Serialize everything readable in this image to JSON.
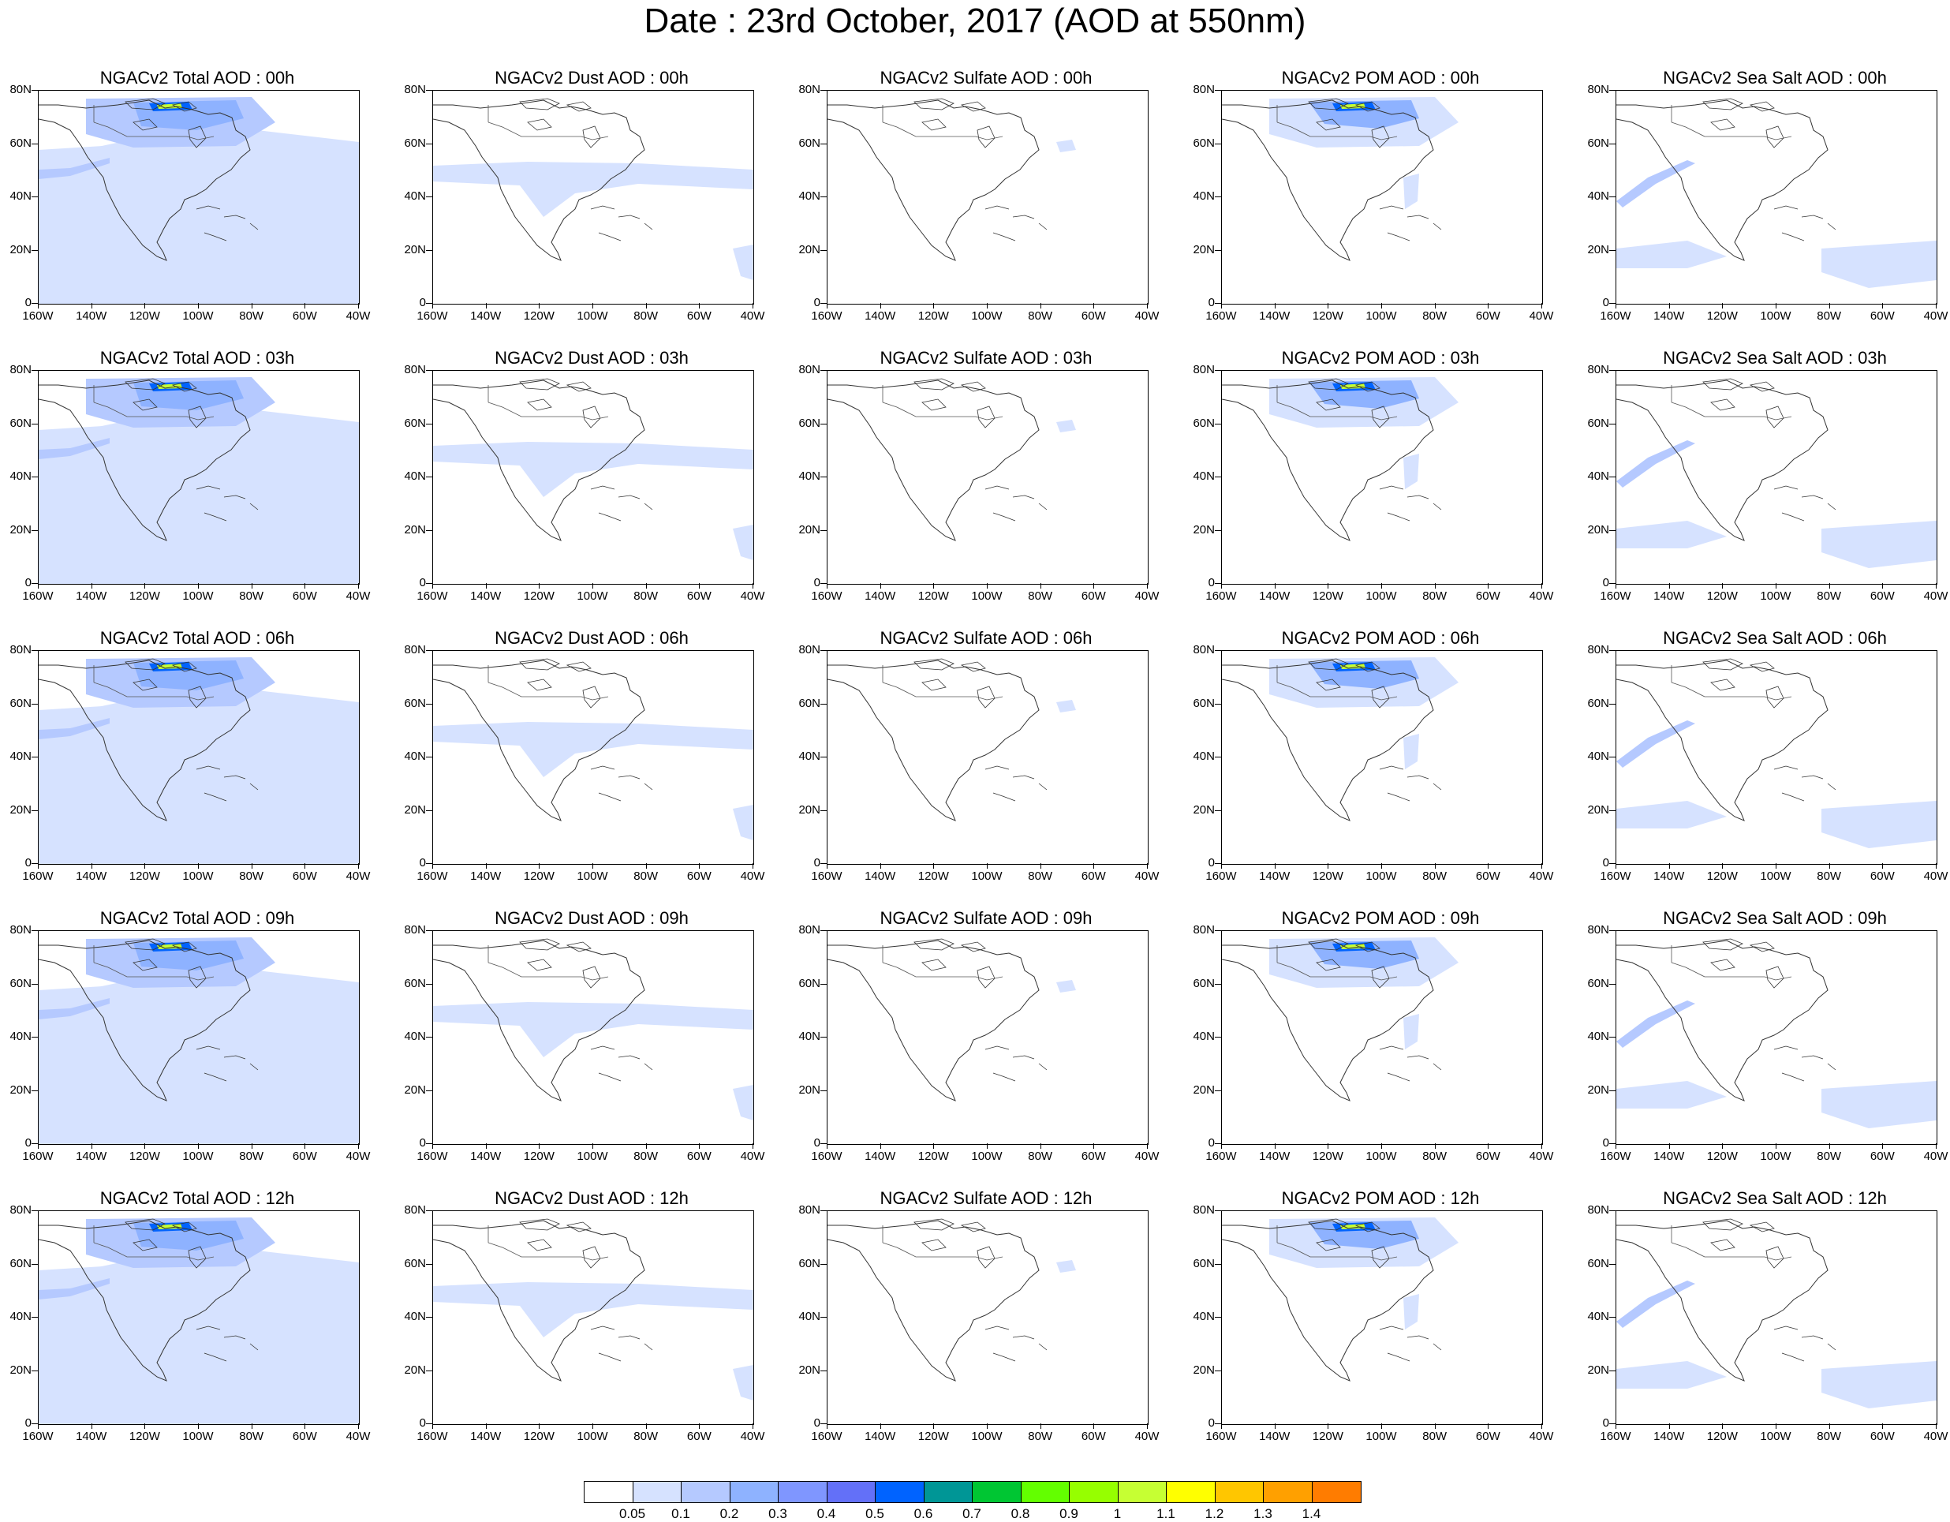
{
  "title": "Date : 23rd October, 2017 (AOD at 550nm)",
  "axes": {
    "lat_labels": [
      "80N",
      "60N",
      "40N",
      "20N",
      "0"
    ],
    "lon_labels": [
      "160W",
      "140W",
      "120W",
      "100W",
      "80W",
      "60W",
      "40W"
    ]
  },
  "panels": [
    {
      "title": "NGACv2 Total AOD : 00h",
      "species": "total",
      "hour": "00h"
    },
    {
      "title": "NGACv2 Dust AOD : 00h",
      "species": "dust",
      "hour": "00h"
    },
    {
      "title": "NGACv2 Sulfate AOD : 00h",
      "species": "sulfate",
      "hour": "00h"
    },
    {
      "title": "NGACv2 POM AOD : 00h",
      "species": "pom",
      "hour": "00h"
    },
    {
      "title": "NGACv2 Sea Salt AOD : 00h",
      "species": "seasalt",
      "hour": "00h"
    },
    {
      "title": "NGACv2 Total AOD : 03h",
      "species": "total",
      "hour": "03h"
    },
    {
      "title": "NGACv2 Dust AOD : 03h",
      "species": "dust",
      "hour": "03h"
    },
    {
      "title": "NGACv2 Sulfate AOD : 03h",
      "species": "sulfate",
      "hour": "03h"
    },
    {
      "title": "NGACv2 POM AOD : 03h",
      "species": "pom",
      "hour": "03h"
    },
    {
      "title": "NGACv2 Sea Salt AOD : 03h",
      "species": "seasalt",
      "hour": "03h"
    },
    {
      "title": "NGACv2 Total AOD : 06h",
      "species": "total",
      "hour": "06h"
    },
    {
      "title": "NGACv2 Dust AOD : 06h",
      "species": "dust",
      "hour": "06h"
    },
    {
      "title": "NGACv2 Sulfate AOD : 06h",
      "species": "sulfate",
      "hour": "06h"
    },
    {
      "title": "NGACv2 POM AOD : 06h",
      "species": "pom",
      "hour": "06h"
    },
    {
      "title": "NGACv2 Sea Salt AOD : 06h",
      "species": "seasalt",
      "hour": "06h"
    },
    {
      "title": "NGACv2 Total AOD : 09h",
      "species": "total",
      "hour": "09h"
    },
    {
      "title": "NGACv2 Dust AOD : 09h",
      "species": "dust",
      "hour": "09h"
    },
    {
      "title": "NGACv2 Sulfate AOD : 09h",
      "species": "sulfate",
      "hour": "09h"
    },
    {
      "title": "NGACv2 POM AOD : 09h",
      "species": "pom",
      "hour": "09h"
    },
    {
      "title": "NGACv2 Sea Salt  AOD : 09h",
      "species": "seasalt",
      "hour": "09h"
    },
    {
      "title": "NGACv2 Total AOD  : 12h",
      "species": "total",
      "hour": "12h"
    },
    {
      "title": "NGACv2 Dust AOD : 12h",
      "species": "dust",
      "hour": "12h"
    },
    {
      "title": "NGACv2 Sulfate AOD : 12h",
      "species": "sulfate",
      "hour": "12h"
    },
    {
      "title": "NGACv2 POM  AOD : 12h",
      "species": "pom",
      "hour": "12h"
    },
    {
      "title": "NGACv2 Sea Salt  AOD : 12h",
      "species": "seasalt",
      "hour": "12h"
    }
  ],
  "colorbar": {
    "labels": [
      "0.05",
      "0.1",
      "0.2",
      "0.3",
      "0.4",
      "0.5",
      "0.6",
      "0.7",
      "0.8",
      "0.9",
      "1",
      "1.1",
      "1.2",
      "1.3",
      "1.4"
    ],
    "colors": [
      "#ffffff",
      "#d6e2ff",
      "#b5c9ff",
      "#8eb2ff",
      "#7f96ff",
      "#6370f8",
      "#0063ff",
      "#009696",
      "#00c633",
      "#63ff00",
      "#96ff00",
      "#c6ff33",
      "#ffff00",
      "#ffc600",
      "#ffa000",
      "#ff7c00",
      "#ff1900"
    ]
  }
}
